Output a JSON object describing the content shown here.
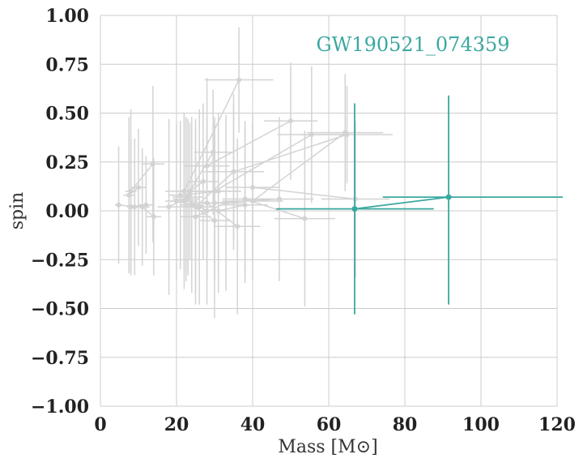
{
  "chart_data": {
    "type": "scatter",
    "xlabel": "Mass [M⊙]",
    "ylabel": "spin",
    "xlim": [
      0,
      120
    ],
    "ylim": [
      -1.0,
      1.0
    ],
    "x_ticks": [
      "0",
      "20",
      "40",
      "60",
      "80",
      "100",
      "120"
    ],
    "y_ticks": [
      "1.00",
      "0.75",
      "0.50",
      "0.25",
      "0.00",
      "−0.25",
      "−0.50",
      "−0.75",
      "−1.00"
    ],
    "grid": true,
    "highlight_color": "#3aa8a0",
    "background_color": "#d3d3d3",
    "annotation": "GW190521_074359",
    "highlight": {
      "name": "GW190521_074359",
      "points": [
        {
          "x": 66.8,
          "y": 0.01,
          "xerr": [
            20.6,
            20.8
          ],
          "yerr": [
            0.54,
            0.54
          ]
        },
        {
          "x": 91.5,
          "y": 0.07,
          "xerr": [
            17.3,
            30.0
          ],
          "yerr": [
            0.55,
            0.52
          ]
        }
      ]
    },
    "background_events": [
      {
        "x1": 36.4,
        "y1": 0.67,
        "x2": 22.0,
        "y2": 0.1,
        "xe1": 9.0,
        "ye1": 0.27,
        "xe2": 5.0,
        "ye2": 0.4
      },
      {
        "x1": 50.0,
        "y1": 0.46,
        "x2": 28.0,
        "y2": 0.23,
        "xe1": 7.0,
        "ye1": 0.3,
        "xe2": 6.0,
        "ye2": 0.45
      },
      {
        "x1": 64.8,
        "y1": 0.39,
        "x2": 35.0,
        "y2": 0.2,
        "xe1": 12.0,
        "ye1": 0.25,
        "xe2": 8.0,
        "ye2": 0.4
      },
      {
        "x1": 55.5,
        "y1": 0.39,
        "x2": 30.0,
        "y2": 0.1,
        "xe1": 9.0,
        "ye1": 0.35,
        "xe2": 7.0,
        "ye2": 0.38
      },
      {
        "x1": 64.3,
        "y1": 0.4,
        "x2": 40.0,
        "y2": 0.05,
        "xe1": 10.0,
        "ye1": 0.3,
        "xe2": 8.0,
        "ye2": 0.4
      },
      {
        "x1": 13.8,
        "y1": 0.24,
        "x2": 8.0,
        "y2": 0.1,
        "xe1": 3.0,
        "ye1": 0.4,
        "xe2": 1.5,
        "ye2": 0.42
      },
      {
        "x1": 29.6,
        "y1": 0.3,
        "x2": 22.0,
        "y2": 0.05,
        "xe1": 5.0,
        "ye1": 0.32,
        "xe2": 3.5,
        "ye2": 0.45
      },
      {
        "x1": 53.7,
        "y1": -0.04,
        "x2": 38.0,
        "y2": 0.06,
        "xe1": 8.0,
        "ye1": 0.45,
        "xe2": 6.0,
        "ye2": 0.4
      },
      {
        "x1": 67.0,
        "y1": 0.06,
        "x2": 40.0,
        "y2": 0.12,
        "xe1": 9.0,
        "ye1": 0.4,
        "xe2": 7.0,
        "ye2": 0.38
      },
      {
        "x1": 47.0,
        "y1": 0.06,
        "x2": 30.0,
        "y2": 0.04,
        "xe1": 9.0,
        "ye1": 0.42,
        "xe2": 6.0,
        "ye2": 0.4
      },
      {
        "x1": 35.0,
        "y1": 0.2,
        "x2": 25.0,
        "y2": 0.02,
        "xe1": 6.0,
        "ye1": 0.35,
        "xe2": 4.0,
        "ye2": 0.45
      },
      {
        "x1": 12.0,
        "y1": 0.03,
        "x2": 8.0,
        "y2": 0.02,
        "xe1": 2.0,
        "ye1": 0.25,
        "xe2": 1.0,
        "ye2": 0.35
      },
      {
        "x1": 10.0,
        "y1": 0.12,
        "x2": 7.5,
        "y2": 0.08,
        "xe1": 2.0,
        "ye1": 0.3,
        "xe2": 1.5,
        "ye2": 0.4
      },
      {
        "x1": 4.8,
        "y1": 0.03,
        "x2": 9.0,
        "y2": 0.02,
        "xe1": 1.0,
        "ye1": 0.3,
        "xe2": 2.0,
        "ye2": 0.35
      },
      {
        "x1": 23.0,
        "y1": 0.07,
        "x2": 18.0,
        "y2": 0.02,
        "xe1": 4.0,
        "ye1": 0.4,
        "xe2": 3.0,
        "ye2": 0.45
      },
      {
        "x1": 26.0,
        "y1": 0.02,
        "x2": 20.0,
        "y2": 0.05,
        "xe1": 4.0,
        "ye1": 0.5,
        "xe2": 3.0,
        "ye2": 0.4
      },
      {
        "x1": 30.0,
        "y1": -0.05,
        "x2": 24.0,
        "y2": 0.03,
        "xe1": 4.0,
        "ye1": 0.5,
        "xe2": 3.0,
        "ye2": 0.45
      },
      {
        "x1": 33.0,
        "y1": 0.04,
        "x2": 25.0,
        "y2": -0.03,
        "xe1": 5.0,
        "ye1": 0.45,
        "xe2": 4.0,
        "ye2": 0.45
      },
      {
        "x1": 28.0,
        "y1": 0.0,
        "x2": 22.5,
        "y2": 0.06,
        "xe1": 5.0,
        "ye1": 0.48,
        "xe2": 3.5,
        "ye2": 0.42
      },
      {
        "x1": 36.0,
        "y1": -0.08,
        "x2": 28.0,
        "y2": 0.04,
        "xe1": 6.0,
        "ye1": 0.45,
        "xe2": 4.0,
        "ye2": 0.4
      },
      {
        "x1": 31.0,
        "y1": 0.1,
        "x2": 21.0,
        "y2": 0.08,
        "xe1": 5.0,
        "ye1": 0.4,
        "xe2": 3.0,
        "ye2": 0.38
      },
      {
        "x1": 14.0,
        "y1": -0.03,
        "x2": 11.0,
        "y2": 0.02,
        "xe1": 2.0,
        "ye1": 0.3,
        "xe2": 2.0,
        "ye2": 0.3
      },
      {
        "x1": 38.0,
        "y1": 0.03,
        "x2": 31.0,
        "y2": 0.0,
        "xe1": 6.0,
        "ye1": 0.4,
        "xe2": 5.0,
        "ye2": 0.42
      },
      {
        "x1": 27.0,
        "y1": 0.15,
        "x2": 23.5,
        "y2": 0.1,
        "xe1": 4.0,
        "ye1": 0.4,
        "xe2": 3.0,
        "ye2": 0.35
      }
    ]
  }
}
